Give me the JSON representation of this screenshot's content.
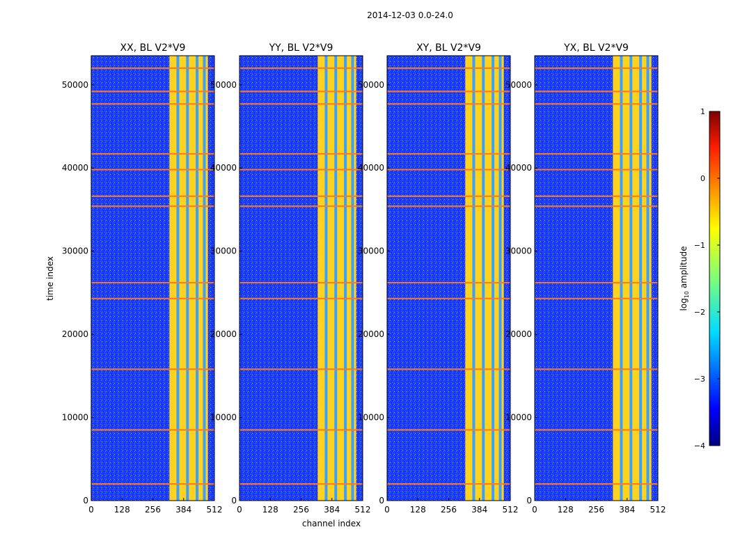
{
  "suptitle": "2014-12-03 0.0-24.0",
  "colors": {
    "background_low": "#1e3cff",
    "band_high": "#ffd21e",
    "flag": "#ff7a14"
  },
  "chart_data": {
    "type": "heatmap",
    "xlabel": "channel index",
    "ylabel": "time index",
    "xlim": [
      0,
      512
    ],
    "ylim": [
      0,
      53500
    ],
    "xticks": [
      0,
      128,
      256,
      384,
      512
    ],
    "yticks": [
      0,
      10000,
      20000,
      30000,
      40000,
      50000
    ],
    "panels": [
      {
        "title": "XX, BL V2*V9"
      },
      {
        "title": "YY, BL V2*V9"
      },
      {
        "title": "XY, BL V2*V9"
      },
      {
        "title": "YX, BL V2*V9"
      }
    ],
    "bright_band_channels": [
      325,
      485
    ],
    "band_gap_channels": [
      360,
      400,
      440,
      470
    ],
    "flagged_time_rows": [
      2000,
      8500,
      15800,
      24300,
      26200,
      35400,
      36600,
      39800,
      41700,
      47700,
      49200,
      52000
    ],
    "colorbar": {
      "label": "log",
      "label_subscript": "10",
      "label_suffix": " amplitude",
      "range": [
        -4,
        1
      ],
      "ticks": [
        1,
        0,
        -1,
        -2,
        -3,
        -4
      ],
      "tick_labels": [
        "1",
        "0",
        "−1",
        "−2",
        "−3",
        "−4"
      ],
      "colormap": "jet"
    }
  }
}
